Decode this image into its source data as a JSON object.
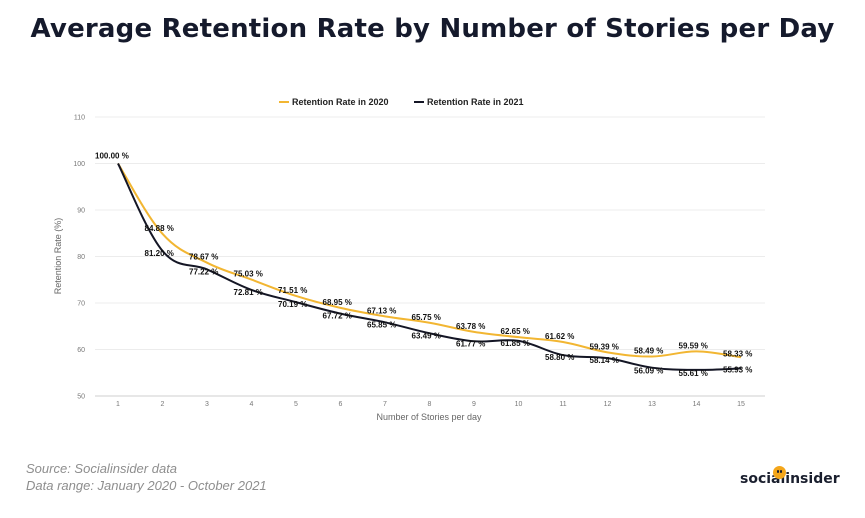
{
  "chart_data": {
    "type": "line",
    "title": "Average Retention Rate by Number of Stories per Day",
    "xlabel": "Number of Stories per day",
    "ylabel": "Retention Rate (%)",
    "ylim": [
      50,
      110
    ],
    "yticks": [
      "50",
      "60",
      "70",
      "80",
      "90",
      "100",
      "110"
    ],
    "categories": [
      "1",
      "2",
      "3",
      "4",
      "5",
      "6",
      "7",
      "8",
      "9",
      "10",
      "11",
      "12",
      "13",
      "14",
      "15"
    ],
    "grid": true,
    "legend_position": "top",
    "series": [
      {
        "name": "Retention Rate in 2020",
        "color": "#f2b632",
        "values": [
          100.0,
          84.88,
          78.67,
          75.03,
          71.51,
          68.95,
          67.13,
          65.75,
          63.78,
          62.65,
          61.62,
          59.39,
          58.49,
          59.59,
          58.33
        ],
        "labels": [
          "100.00 %",
          "84.88 %",
          "78.67 %",
          "75.03 %",
          "71.51 %",
          "68.95 %",
          "67.13 %",
          "65.75 %",
          "63.78 %",
          "62.65 %",
          "61.62 %",
          "59.39 %",
          "58.49 %",
          "59.59 %",
          "58.33 %"
        ]
      },
      {
        "name": "Retention Rate in 2021",
        "color": "#141625",
        "values": [
          100.0,
          81.2,
          77.22,
          72.81,
          70.19,
          67.72,
          65.85,
          63.49,
          61.77,
          61.85,
          58.8,
          58.14,
          56.09,
          55.61,
          55.93
        ],
        "labels": [
          "",
          "81.20 %",
          "77.22 %",
          "72.81 %",
          "70.19 %",
          "67.72 %",
          "65.85 %",
          "63.49 %",
          "61.77 %",
          "61.85 %",
          "58.80 %",
          "58.14 %",
          "56.09 %",
          "55.61 %",
          "55.93 %"
        ]
      }
    ]
  },
  "source": "Source: Socialinsider data",
  "data_range": "Data range: January 2020 - October 2021",
  "brand": "socialinsider"
}
